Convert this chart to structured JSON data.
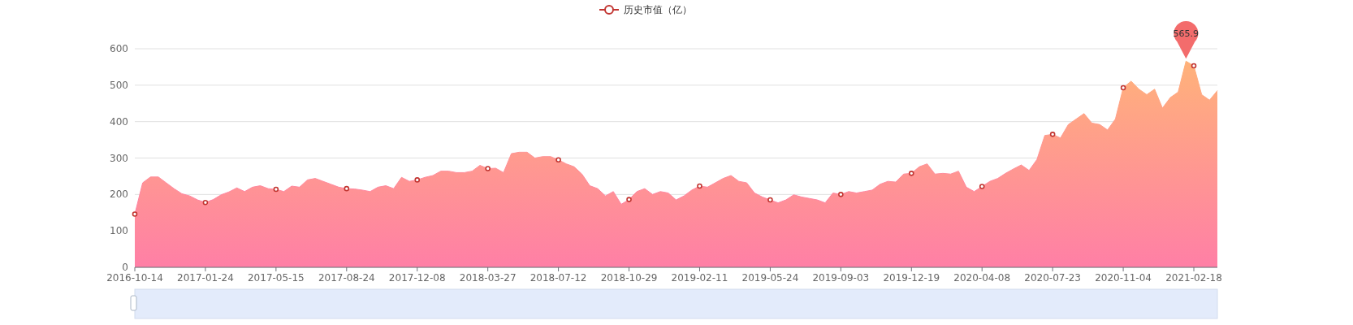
{
  "chart_data": {
    "type": "area",
    "categories": [
      "2016-10-14",
      null,
      null,
      null,
      null,
      null,
      null,
      null,
      null,
      "2017-01-24",
      null,
      null,
      null,
      null,
      null,
      null,
      null,
      null,
      "2017-05-15",
      null,
      null,
      null,
      null,
      null,
      null,
      null,
      null,
      "2017-08-24",
      null,
      null,
      null,
      null,
      null,
      null,
      null,
      null,
      "2017-12-08",
      null,
      null,
      null,
      null,
      null,
      null,
      null,
      null,
      "2018-03-27",
      null,
      null,
      null,
      null,
      null,
      null,
      null,
      null,
      "2018-07-12",
      null,
      null,
      null,
      null,
      null,
      null,
      null,
      null,
      "2018-10-29",
      null,
      null,
      null,
      null,
      null,
      null,
      null,
      null,
      "2019-02-11",
      null,
      null,
      null,
      null,
      null,
      null,
      null,
      null,
      "2019-05-24",
      null,
      null,
      null,
      null,
      null,
      null,
      null,
      null,
      "2019-09-03",
      null,
      null,
      null,
      null,
      null,
      null,
      null,
      null,
      "2019-12-19",
      null,
      null,
      null,
      null,
      null,
      null,
      null,
      null,
      "2020-04-08",
      null,
      null,
      null,
      null,
      null,
      null,
      null,
      null,
      "2020-07-23",
      null,
      null,
      null,
      null,
      null,
      null,
      null,
      null,
      "2020-11-04",
      null,
      null,
      null,
      null,
      null,
      null,
      null,
      null,
      "2021-02-18",
      null,
      null,
      null
    ],
    "series": [
      {
        "name": "历史市值（亿）",
        "color": "#c23531",
        "values": [
          146,
          232,
          248,
          248,
          232,
          216,
          202,
          196,
          185,
          178,
          186,
          199,
          207,
          218,
          208,
          220,
          224,
          216,
          214,
          208,
          223,
          220,
          240,
          244,
          236,
          228,
          220,
          216,
          215,
          212,
          208,
          220,
          224,
          216,
          247,
          236,
          240,
          247,
          252,
          264,
          264,
          260,
          260,
          264,
          280,
          271,
          272,
          260,
          312,
          316,
          316,
          300,
          304,
          304,
          295,
          284,
          276,
          256,
          224,
          216,
          196,
          208,
          173,
          186,
          208,
          216,
          200,
          208,
          204,
          185,
          196,
          212,
          223,
          220,
          232,
          244,
          252,
          236,
          232,
          204,
          193,
          185,
          177,
          185,
          199,
          193,
          189,
          185,
          177,
          204,
          200,
          208,
          204,
          208,
          212,
          228,
          236,
          234,
          256,
          258,
          276,
          284,
          256,
          258,
          256,
          264,
          220,
          208,
          222,
          236,
          244,
          258,
          270,
          281,
          266,
          296,
          362,
          365,
          355,
          392,
          407,
          422,
          396,
          392,
          377,
          407,
          493,
          511,
          489,
          474,
          489,
          437,
          466,
          481,
          565.9,
          553,
          474,
          459,
          485
        ]
      }
    ],
    "ylim": [
      0,
      600
    ],
    "yticks": [
      0,
      100,
      200,
      300,
      400,
      500,
      600
    ],
    "grid": "y",
    "legend": "top",
    "annotations": [
      {
        "text": "565.9",
        "y": 565.9
      }
    ]
  }
}
